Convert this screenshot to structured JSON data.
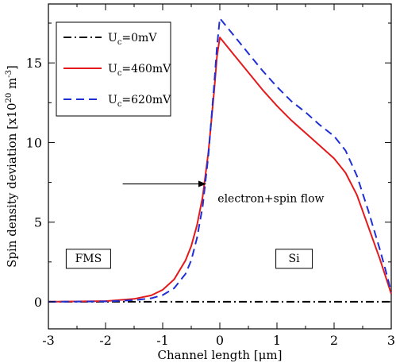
{
  "chart_data": {
    "type": "line",
    "xlabel": "Channel length [μm]",
    "ylabel": "Spin density deviation [x10",
    "ylabel_exp": "20",
    "ylabel_unit": " m",
    "ylabel_unit_exp": "-3",
    "ylabel_close": "]",
    "xlim": [
      -3,
      3
    ],
    "ylim": [
      -1.7,
      18.7
    ],
    "xticks": [
      -3,
      -2,
      -1,
      0,
      1,
      2,
      3
    ],
    "xtick_labels": [
      "-3",
      "-2",
      "-1",
      "0",
      "1",
      "2",
      "3"
    ],
    "yticks": [
      0,
      5,
      10,
      15
    ],
    "ytick_labels": [
      "0",
      "5",
      "10",
      "15"
    ],
    "grid": false,
    "legend_position": "top-left",
    "series": [
      {
        "name": "U_c=0mV",
        "label_main": "U",
        "label_sub": "c",
        "label_rest": "=0mV",
        "color": "#000000",
        "style": "dash-dot",
        "x": [
          -3,
          3
        ],
        "y": [
          0,
          0
        ]
      },
      {
        "name": "U_c=460mV",
        "label_main": "U",
        "label_sub": "c",
        "label_rest": "=460mV",
        "color": "#e31a1c",
        "style": "solid",
        "x": [
          -3,
          -2,
          -1.5,
          -1.2,
          -1,
          -0.8,
          -0.6,
          -0.5,
          -0.4,
          -0.3,
          -0.2,
          -0.1,
          -0.05,
          0,
          0.25,
          0.5,
          0.75,
          1,
          1.25,
          1.5,
          1.75,
          2,
          2.2,
          2.4,
          2.6,
          2.8,
          2.9,
          3
        ],
        "y": [
          0,
          0.04,
          0.18,
          0.4,
          0.75,
          1.4,
          2.6,
          3.5,
          4.8,
          6.6,
          9.4,
          13.2,
          15.4,
          16.6,
          15.5,
          14.4,
          13.3,
          12.3,
          11.4,
          10.6,
          9.8,
          9.0,
          8.1,
          6.7,
          4.7,
          2.7,
          1.6,
          0.5
        ]
      },
      {
        "name": "U_c=620mV",
        "label_main": "U",
        "label_sub": "c",
        "label_rest": "=620mV",
        "color": "#1f2fd6",
        "style": "dashed",
        "x": [
          -3,
          -2,
          -1.5,
          -1.2,
          -1,
          -0.8,
          -0.6,
          -0.5,
          -0.4,
          -0.3,
          -0.2,
          -0.1,
          -0.05,
          0,
          0.25,
          0.5,
          0.75,
          1,
          1.25,
          1.5,
          1.75,
          2,
          2.2,
          2.4,
          2.6,
          2.8,
          2.9,
          3
        ],
        "y": [
          0,
          0.02,
          0.1,
          0.22,
          0.42,
          0.85,
          1.75,
          2.6,
          4.0,
          6.0,
          9.2,
          13.6,
          16.0,
          17.8,
          16.7,
          15.6,
          14.5,
          13.5,
          12.6,
          11.9,
          11.1,
          10.4,
          9.5,
          7.9,
          5.7,
          3.3,
          2.0,
          0.6
        ]
      }
    ],
    "annotations": {
      "arrow_label": "electron+spin flow",
      "arrow_x": [
        -1.7,
        -0.25
      ],
      "arrow_y": 7.4,
      "arrow_label_x": -1.05,
      "arrow_label_y": 6.5,
      "box_left": "FMS",
      "box_left_x": -2.3,
      "box_left_y": 2.7,
      "box_right": "Si",
      "box_right_x": 1.3,
      "box_right_y": 2.7
    }
  }
}
